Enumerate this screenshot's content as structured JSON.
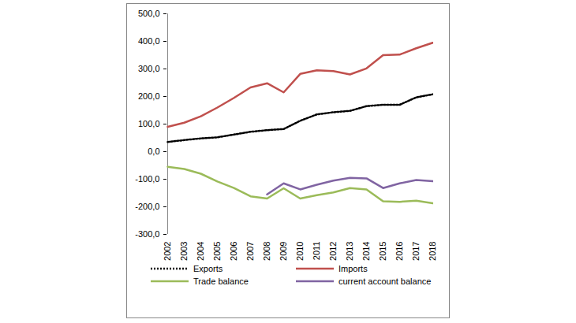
{
  "chart_data": {
    "type": "line",
    "categories": [
      "2002",
      "2003",
      "2004",
      "2005",
      "2006",
      "2007",
      "2008",
      "2009",
      "2010",
      "2011",
      "2012",
      "2013",
      "2014",
      "2015",
      "2016",
      "2017",
      "2018"
    ],
    "series": [
      {
        "name": "Exports",
        "color": "#000000",
        "line_style": "dotted",
        "values": [
          35,
          42,
          48,
          52,
          62,
          72,
          78,
          82,
          112,
          135,
          143,
          148,
          165,
          170,
          170,
          197,
          208
        ]
      },
      {
        "name": "Imports",
        "color": "#c0504d",
        "line_style": "solid",
        "values": [
          90,
          105,
          128,
          160,
          195,
          233,
          248,
          215,
          282,
          295,
          292,
          280,
          302,
          350,
          352,
          375,
          395
        ]
      },
      {
        "name": "Trade balance",
        "color": "#9bbb59",
        "line_style": "solid",
        "values": [
          -55,
          -63,
          -80,
          -108,
          -132,
          -162,
          -170,
          -133,
          -170,
          -158,
          -148,
          -132,
          -137,
          -180,
          -182,
          -178,
          -187
        ]
      },
      {
        "name": "current account balance",
        "color": "#8064a2",
        "line_style": "solid",
        "values": [
          null,
          null,
          null,
          null,
          null,
          null,
          -155,
          -115,
          -137,
          -120,
          -105,
          -95,
          -97,
          -132,
          -115,
          -103,
          -107
        ]
      }
    ],
    "ylim": [
      -300,
      500
    ],
    "yticks": [
      {
        "value": 500,
        "label": "500,0"
      },
      {
        "value": 400,
        "label": "400,0"
      },
      {
        "value": 300,
        "label": "300,0"
      },
      {
        "value": 200,
        "label": "200,0"
      },
      {
        "value": 100,
        "label": "100,0"
      },
      {
        "value": 0,
        "label": "0,0"
      },
      {
        "value": -100,
        "label": "-100,0"
      },
      {
        "value": -200,
        "label": "-200,0"
      },
      {
        "value": -300,
        "label": "-300,0"
      }
    ],
    "grid": false,
    "legend": "bottom"
  }
}
